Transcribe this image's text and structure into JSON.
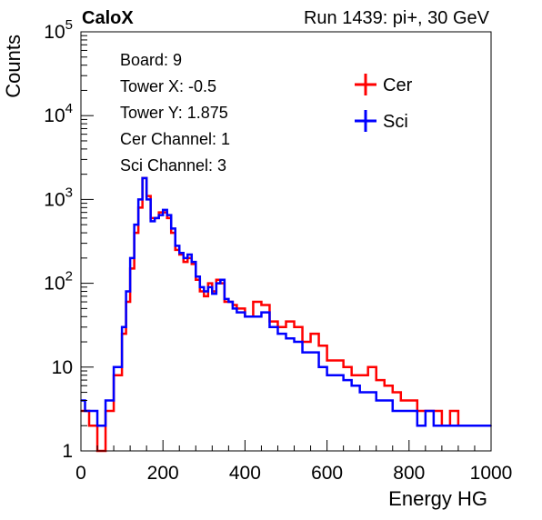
{
  "chart_data": {
    "type": "line",
    "header_left": "CaloX",
    "title": "Run 1439: pi+, 30 GeV",
    "xlabel": "Energy HG",
    "ylabel": "Counts",
    "xlim": [
      0,
      1000
    ],
    "ylim": [
      1,
      100000
    ],
    "log_y": true,
    "grid": false,
    "legend_position": "top-right",
    "x_ticks": [
      "0",
      "200",
      "400",
      "600",
      "800",
      "1000"
    ],
    "y_ticks": [
      "1",
      "10",
      "10^2",
      "10^3",
      "10^4",
      "10^5"
    ],
    "info_lines": [
      "Board: 9",
      "Tower X: -0.5",
      "Tower Y: 1.875",
      "Cer Channel: 1",
      "Sci Channel: 3"
    ],
    "series": [
      {
        "name": "Cer",
        "color": "#ff0000",
        "x": [
          0,
          10,
          20,
          40,
          60,
          80,
          100,
          110,
          120,
          130,
          140,
          150,
          160,
          170,
          180,
          190,
          200,
          210,
          220,
          230,
          240,
          250,
          260,
          270,
          280,
          290,
          300,
          310,
          320,
          330,
          340,
          350,
          360,
          370,
          380,
          400,
          420,
          440,
          460,
          480,
          500,
          520,
          540,
          560,
          580,
          600,
          620,
          640,
          660,
          680,
          700,
          720,
          740,
          760,
          780,
          800,
          820,
          840,
          860,
          880,
          900,
          920,
          940,
          960,
          980,
          1000
        ],
        "y": [
          3,
          3,
          2,
          1,
          3,
          8,
          25,
          60,
          150,
          400,
          800,
          1800,
          1100,
          600,
          600,
          700,
          700,
          600,
          400,
          250,
          220,
          180,
          200,
          170,
          110,
          80,
          70,
          100,
          80,
          110,
          100,
          60,
          60,
          55,
          50,
          40,
          60,
          55,
          35,
          30,
          35,
          30,
          20,
          25,
          18,
          12,
          12,
          10,
          8,
          8,
          10,
          7,
          6,
          5,
          4,
          4,
          3,
          3,
          3,
          2,
          3,
          2,
          2,
          2,
          2,
          2
        ]
      },
      {
        "name": "Sci",
        "color": "#0000ff",
        "x": [
          0,
          10,
          20,
          40,
          60,
          80,
          100,
          110,
          120,
          130,
          140,
          150,
          160,
          170,
          180,
          190,
          200,
          210,
          220,
          230,
          240,
          250,
          260,
          270,
          280,
          290,
          300,
          310,
          320,
          330,
          340,
          350,
          360,
          370,
          380,
          400,
          420,
          440,
          460,
          480,
          500,
          520,
          540,
          560,
          580,
          600,
          620,
          640,
          660,
          680,
          700,
          720,
          740,
          760,
          780,
          800,
          820,
          840,
          860,
          880,
          900,
          920,
          940,
          960,
          980,
          1000
        ],
        "y": [
          4,
          3,
          3,
          2,
          4,
          10,
          30,
          80,
          200,
          500,
          1000,
          1800,
          1000,
          550,
          600,
          650,
          750,
          650,
          450,
          280,
          230,
          200,
          220,
          180,
          120,
          90,
          80,
          90,
          75,
          100,
          110,
          65,
          60,
          50,
          45,
          40,
          40,
          45,
          30,
          25,
          22,
          20,
          15,
          15,
          10,
          8,
          8,
          7,
          6,
          5,
          5,
          4,
          4,
          3,
          3,
          3,
          2,
          3,
          2,
          2,
          2,
          2,
          2,
          2,
          2,
          2
        ]
      }
    ]
  }
}
